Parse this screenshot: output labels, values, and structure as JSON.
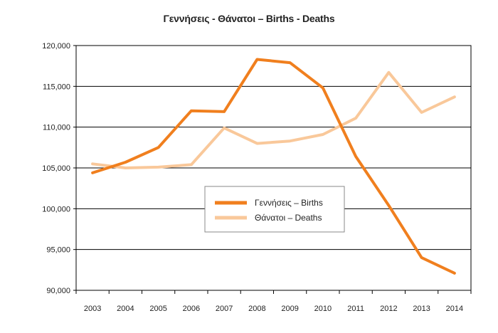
{
  "chart_data": {
    "type": "line",
    "title": "Γεννήσεις - Θάνατοι – Births - Deaths",
    "xlabel": "",
    "ylabel": "",
    "categories": [
      "2003",
      "2004",
      "2005",
      "2006",
      "2007",
      "2008",
      "2009",
      "2010",
      "2011",
      "2012",
      "2013",
      "2014"
    ],
    "ylim": [
      90000,
      120000
    ],
    "y_ticks": [
      90000,
      95000,
      100000,
      105000,
      110000,
      115000,
      120000
    ],
    "y_tick_labels": [
      "90,000",
      "95,000",
      "100,000",
      "105,000",
      "110,000",
      "115,000",
      "120,000"
    ],
    "grid": true,
    "legend_position": "center-right",
    "series": [
      {
        "name": "Γεννήσεις – Births",
        "color": "#F07F1E",
        "values": [
          104400,
          105700,
          107500,
          112000,
          111900,
          118300,
          117900,
          114800,
          106400,
          100400,
          94000,
          92100
        ]
      },
      {
        "name": "Θάνατοι – Deaths",
        "color": "#F9C89A",
        "values": [
          105500,
          105000,
          105100,
          105400,
          109900,
          108000,
          108300,
          109100,
          111100,
          116700,
          111800,
          113700
        ]
      }
    ]
  }
}
